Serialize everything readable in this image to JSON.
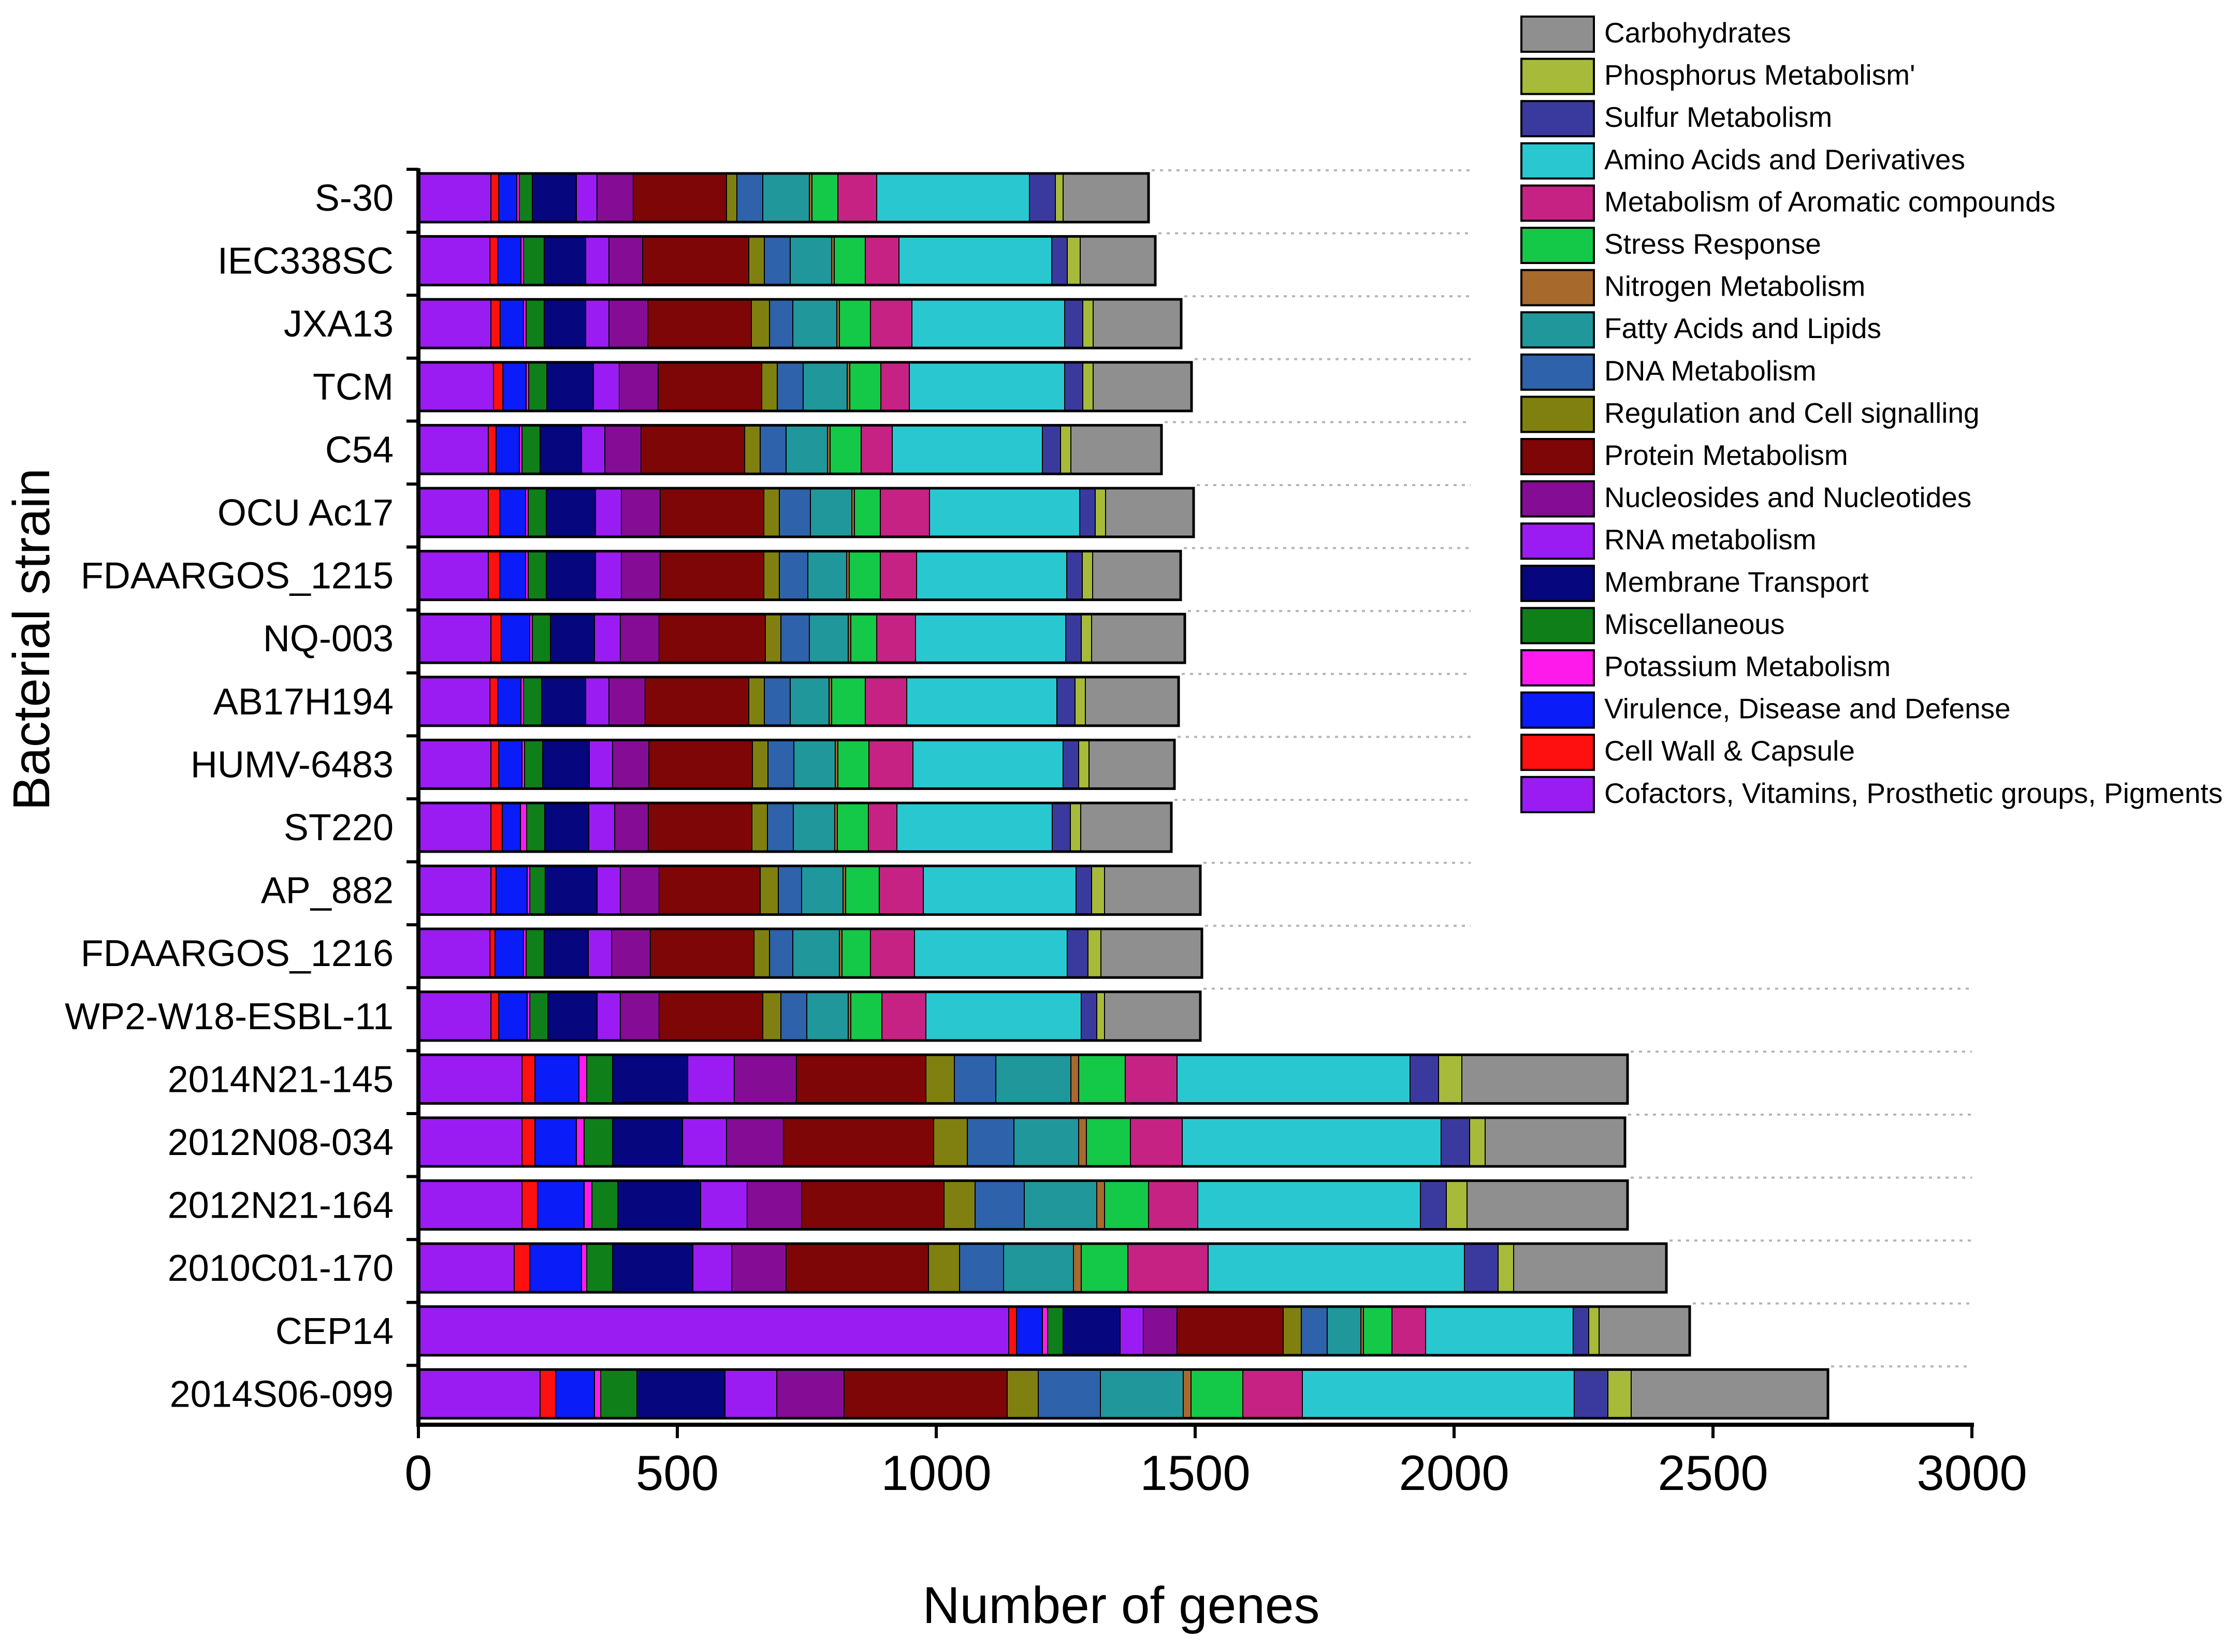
{
  "chart_data": {
    "type": "bar",
    "orientation": "horizontal",
    "stacked": true,
    "title": "",
    "xlabel": "Number of genes",
    "ylabel": "Bacterial strain",
    "xlim": [
      0,
      3000
    ],
    "xticks": [
      0,
      500,
      1000,
      1500,
      2000,
      2500,
      3000
    ],
    "grid": "dotted row leaders",
    "legend_position": "top-right",
    "categories": [
      "S-30",
      "IEC338SC",
      "JXA13",
      "TCM",
      "C54",
      "OCU Ac17",
      "FDAARGOS_1215",
      "NQ-003",
      "AB17H194",
      "HUMV-6483",
      "ST220",
      "AP_882",
      "FDAARGOS_1216",
      "WP2-W18-ESBL-11",
      "2014N21-145",
      "2012N08-034",
      "2012N21-164",
      "2010C01-170",
      "CEP14",
      "2014S06-099"
    ],
    "series": [
      {
        "name": "Cofactors, Vitamins, Prosthetic groups, Pigments",
        "color": "#9a1cf3",
        "values": [
          140,
          138,
          140,
          145,
          135,
          135,
          135,
          140,
          138,
          140,
          140,
          140,
          138,
          140,
          200,
          200,
          200,
          185,
          1140,
          235
        ]
      },
      {
        "name": "Cell Wall & Capsule",
        "color": "#ff1010",
        "values": [
          15,
          15,
          18,
          18,
          15,
          22,
          22,
          20,
          15,
          15,
          22,
          10,
          10,
          15,
          25,
          25,
          30,
          30,
          15,
          30
        ]
      },
      {
        "name": "Virulence, Disease and Defense",
        "color": "#0a1cf7",
        "values": [
          35,
          45,
          45,
          45,
          45,
          50,
          50,
          55,
          45,
          45,
          35,
          60,
          55,
          55,
          85,
          80,
          90,
          100,
          50,
          75
        ]
      },
      {
        "name": "Potassium Metabolism",
        "color": "#ff1aec",
        "values": [
          5,
          5,
          5,
          5,
          5,
          5,
          5,
          5,
          5,
          5,
          12,
          5,
          5,
          5,
          15,
          15,
          15,
          10,
          10,
          12
        ]
      },
      {
        "name": "Miscellaneous",
        "color": "#0f7f1a",
        "values": [
          25,
          40,
          35,
          35,
          35,
          35,
          35,
          35,
          35,
          35,
          35,
          30,
          35,
          35,
          50,
          55,
          50,
          50,
          30,
          70
        ]
      },
      {
        "name": "Membrane Transport",
        "color": "#06067e",
        "values": [
          85,
          80,
          80,
          90,
          80,
          95,
          95,
          85,
          85,
          90,
          85,
          100,
          85,
          95,
          145,
          135,
          160,
          155,
          110,
          170
        ]
      },
      {
        "name": "RNA metabolism",
        "color": "#9a1cf3",
        "values": [
          40,
          45,
          45,
          50,
          45,
          50,
          50,
          50,
          45,
          45,
          50,
          45,
          45,
          45,
          90,
          85,
          90,
          75,
          45,
          100
        ]
      },
      {
        "name": "Nucleosides and Nucleotides",
        "color": "#850c94",
        "values": [
          70,
          65,
          75,
          75,
          70,
          75,
          75,
          75,
          70,
          70,
          65,
          75,
          75,
          75,
          120,
          110,
          105,
          105,
          65,
          130
        ]
      },
      {
        "name": "Protein Metabolism",
        "color": "#7e0606",
        "values": [
          180,
          205,
          200,
          200,
          200,
          200,
          200,
          205,
          200,
          200,
          200,
          195,
          200,
          200,
          250,
          290,
          275,
          275,
          205,
          315
        ]
      },
      {
        "name": "Regulation and Cell signalling",
        "color": "#808010",
        "values": [
          20,
          30,
          35,
          30,
          30,
          30,
          30,
          30,
          30,
          30,
          30,
          35,
          30,
          35,
          55,
          65,
          60,
          60,
          35,
          60
        ]
      },
      {
        "name": "DNA Metabolism",
        "color": "#2e62aa",
        "values": [
          50,
          50,
          45,
          50,
          50,
          60,
          55,
          55,
          50,
          50,
          50,
          45,
          45,
          50,
          80,
          90,
          95,
          85,
          50,
          120
        ]
      },
      {
        "name": "Fatty Acids and Lipids",
        "color": "#20979a",
        "values": [
          90,
          80,
          85,
          85,
          80,
          80,
          75,
          75,
          75,
          80,
          80,
          80,
          90,
          80,
          145,
          125,
          140,
          135,
          65,
          160
        ]
      },
      {
        "name": "Nitrogen Metabolism",
        "color": "#a8692d",
        "values": [
          5,
          5,
          5,
          5,
          5,
          5,
          5,
          5,
          5,
          5,
          5,
          5,
          5,
          5,
          15,
          15,
          15,
          15,
          5,
          15
        ]
      },
      {
        "name": "Stress Response",
        "color": "#14c848",
        "values": [
          50,
          60,
          60,
          60,
          60,
          50,
          60,
          50,
          65,
          60,
          60,
          65,
          55,
          60,
          90,
          85,
          85,
          90,
          55,
          100
        ]
      },
      {
        "name": "Metabolism of Aromatic compounds",
        "color": "#c62284",
        "values": [
          75,
          65,
          80,
          55,
          60,
          95,
          70,
          75,
          80,
          85,
          55,
          85,
          85,
          85,
          100,
          100,
          95,
          155,
          65,
          115
        ]
      },
      {
        "name": "Amino Acids and Derivatives",
        "color": "#29c8d0",
        "values": [
          295,
          295,
          295,
          300,
          290,
          290,
          290,
          290,
          290,
          290,
          300,
          295,
          295,
          300,
          450,
          500,
          430,
          495,
          285,
          525
        ]
      },
      {
        "name": "Sulfur Metabolism",
        "color": "#3a3a9e",
        "values": [
          50,
          30,
          35,
          35,
          35,
          30,
          30,
          30,
          35,
          30,
          35,
          30,
          40,
          30,
          55,
          55,
          50,
          65,
          30,
          65
        ]
      },
      {
        "name": "Phosphorus Metabolism'",
        "color": "#a7ba3a",
        "values": [
          15,
          25,
          20,
          20,
          20,
          20,
          20,
          20,
          20,
          20,
          20,
          25,
          25,
          15,
          45,
          30,
          40,
          30,
          20,
          45
        ]
      },
      {
        "name": "Carbohydrates",
        "color": "#8f8f8f",
        "values": [
          165,
          145,
          170,
          190,
          175,
          170,
          170,
          180,
          180,
          165,
          175,
          185,
          195,
          185,
          320,
          270,
          310,
          295,
          175,
          380
        ]
      }
    ],
    "legend": [
      {
        "label": "Carbohydrates",
        "color": "#8f8f8f"
      },
      {
        "label": "Phosphorus Metabolism'",
        "color": "#a7ba3a"
      },
      {
        "label": "Sulfur Metabolism",
        "color": "#3a3a9e"
      },
      {
        "label": "Amino Acids and Derivatives",
        "color": "#29c8d0"
      },
      {
        "label": "Metabolism of Aromatic compounds",
        "color": "#c62284"
      },
      {
        "label": "Stress Response",
        "color": "#14c848"
      },
      {
        "label": "Nitrogen Metabolism",
        "color": "#a8692d"
      },
      {
        "label": "Fatty Acids and Lipids",
        "color": "#20979a"
      },
      {
        "label": "DNA Metabolism",
        "color": "#2e62aa"
      },
      {
        "label": "Regulation and Cell signalling",
        "color": "#808010"
      },
      {
        "label": "Protein Metabolism",
        "color": "#7e0606"
      },
      {
        "label": "Nucleosides and Nucleotides",
        "color": "#850c94"
      },
      {
        "label": "RNA metabolism",
        "color": "#9a1cf3"
      },
      {
        "label": "Membrane Transport",
        "color": "#06067e"
      },
      {
        "label": "Miscellaneous",
        "color": "#0f7f1a"
      },
      {
        "label": "Potassium Metabolism",
        "color": "#ff1aec"
      },
      {
        "label": "Virulence, Disease and Defense",
        "color": "#0a1cf7"
      },
      {
        "label": "Cell Wall & Capsule",
        "color": "#ff1010"
      },
      {
        "label": "Cofactors, Vitamins, Prosthetic groups, Pigments",
        "color": "#9a1cf3"
      }
    ]
  }
}
